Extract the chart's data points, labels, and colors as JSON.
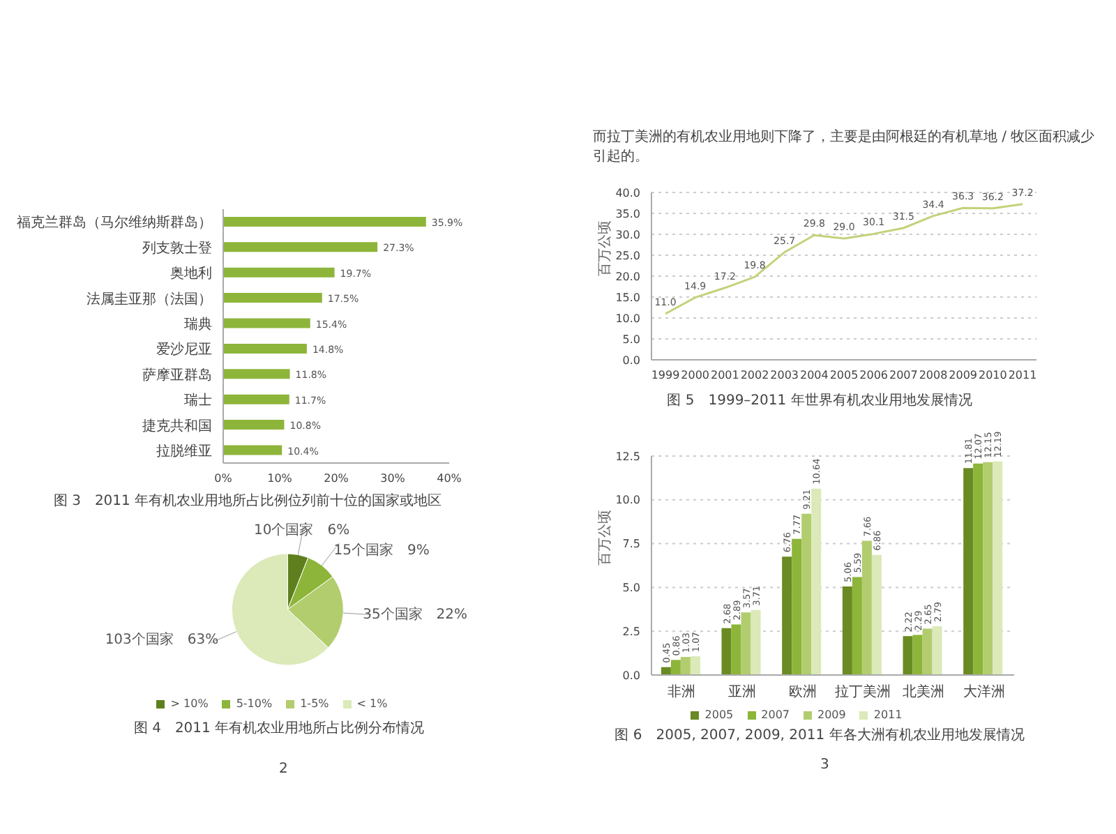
{
  "chart_data": [
    {
      "type": "bar",
      "orientation": "horizontal",
      "title": "图 3　2011 年有机农业用地所占比例位列前十位的国家或地区",
      "categories": [
        "福克兰群岛（马尔维纳斯群岛）",
        "列支敦士登",
        "奥地利",
        "法属圭亚那（法国）",
        "瑞典",
        "爱沙尼亚",
        "萨摩亚群岛",
        "瑞士",
        "捷克共和国",
        "拉脱维亚"
      ],
      "values": [
        35.9,
        27.3,
        19.7,
        17.5,
        15.4,
        14.8,
        11.8,
        11.7,
        10.8,
        10.4
      ],
      "value_labels": [
        "35.9%",
        "27.3%",
        "19.7%",
        "17.5%",
        "15.4%",
        "14.8%",
        "11.8%",
        "11.7%",
        "10.8%",
        "10.4%"
      ],
      "color": "#8db53a",
      "xlim": [
        0,
        40
      ],
      "xticks": [
        {
          "value": 0,
          "label": "0%"
        },
        {
          "value": 10,
          "label": "10%"
        },
        {
          "value": 20,
          "label": "20%"
        },
        {
          "value": 30,
          "label": "30%"
        },
        {
          "value": 40,
          "label": "40%"
        }
      ]
    },
    {
      "type": "pie",
      "title": "图 4　2011 年有机农业用地所占比例分布情况",
      "categories": [
        "> 10%",
        "5-10%",
        "1-5%",
        "< 1%"
      ],
      "values": [
        6,
        9,
        22,
        63
      ],
      "value_labels": [
        "10个国家　6%",
        "15个国家　9%",
        "35个国家　22%",
        "103个国家　63%"
      ],
      "colors": [
        "#5f7f1f",
        "#8db53a",
        "#b2cd6e",
        "#dce9b8"
      ],
      "legend": "bottom",
      "annotations": [
        "2"
      ]
    },
    {
      "type": "line",
      "title": "图 5　1999–2011 年世界有机农业用地发展情况",
      "ylabel": "百万公顷",
      "annotations": [
        "而拉丁美洲的有机农业用地则下降了，主要是由阿根廷的有机草地 / 牧区面积减少引起的。"
      ],
      "categories": [
        "1999",
        "2000",
        "2001",
        "2002",
        "2003",
        "2004",
        "2005",
        "2006",
        "2007",
        "2008",
        "2009",
        "2010",
        "2011"
      ],
      "series": [
        {
          "color": "#c3d27a",
          "values": [
            11.0,
            14.9,
            17.2,
            19.8,
            25.7,
            29.8,
            29.0,
            30.1,
            31.5,
            34.4,
            36.3,
            36.2,
            37.2
          ],
          "value_labels": [
            "11.0",
            "14.9",
            "17.2",
            "19.8",
            "25.7",
            "29.8",
            "29.0",
            "30.1",
            "31.5",
            "34.4",
            "36.3",
            "36.2",
            "37.2"
          ]
        }
      ],
      "ylim": [
        0,
        40
      ],
      "yticks": [
        {
          "value": 0,
          "label": "0.0"
        },
        {
          "value": 5,
          "label": "5.0"
        },
        {
          "value": 10,
          "label": "10.0"
        },
        {
          "value": 15,
          "label": "15.0"
        },
        {
          "value": 20,
          "label": "20.0"
        },
        {
          "value": 25,
          "label": "25.0"
        },
        {
          "value": 30,
          "label": "30.0"
        },
        {
          "value": 35,
          "label": "35.0"
        },
        {
          "value": 40,
          "label": "40.0"
        }
      ],
      "grid": "y",
      "marker": "none",
      "line_style": "solid"
    },
    {
      "type": "bar",
      "title": "图 6　2005, 2007, 2009, 2011 年各大洲有机农业用地发展情况",
      "ylabel": "百万公顷",
      "categories": [
        "非洲",
        "亚洲",
        "欧洲",
        "拉丁美洲",
        "北美洲",
        "大洋洲"
      ],
      "series": [
        {
          "name": "2005",
          "color": "#6a8a24",
          "values": [
            0.45,
            2.68,
            6.76,
            5.06,
            2.22,
            11.81
          ],
          "value_labels": [
            "0.45",
            "2.68",
            "6.76",
            "5.06",
            "2.22",
            "11.81"
          ]
        },
        {
          "name": "2007",
          "color": "#8db53a",
          "values": [
            0.86,
            2.89,
            7.77,
            5.59,
            2.29,
            12.07
          ],
          "value_labels": [
            "0.86",
            "2.89",
            "7.77",
            "5.59",
            "2.29",
            "12.07"
          ]
        },
        {
          "name": "2009",
          "color": "#b2cd6e",
          "values": [
            1.03,
            3.57,
            9.21,
            7.66,
            2.65,
            12.15
          ],
          "value_labels": [
            "1.03",
            "3.57",
            "9.21",
            "7.66",
            "2.65",
            "12.15"
          ]
        },
        {
          "name": "2011",
          "color": "#dce9b8",
          "values": [
            1.07,
            3.71,
            10.64,
            6.86,
            2.79,
            12.19
          ],
          "value_labels": [
            "1.07",
            "3.71",
            "10.64",
            "6.86",
            "2.79",
            "12.19"
          ]
        }
      ],
      "ylim": [
        0,
        12.5
      ],
      "yticks": [
        {
          "value": 0,
          "label": "0.0"
        },
        {
          "value": 2.5,
          "label": "2.5"
        },
        {
          "value": 5,
          "label": "5.0"
        },
        {
          "value": 7.5,
          "label": "7.5"
        },
        {
          "value": 10,
          "label": "10.0"
        },
        {
          "value": 12.5,
          "label": "12.5"
        }
      ],
      "grid": "y",
      "legend": "bottom",
      "annotations": [
        "3"
      ]
    }
  ]
}
